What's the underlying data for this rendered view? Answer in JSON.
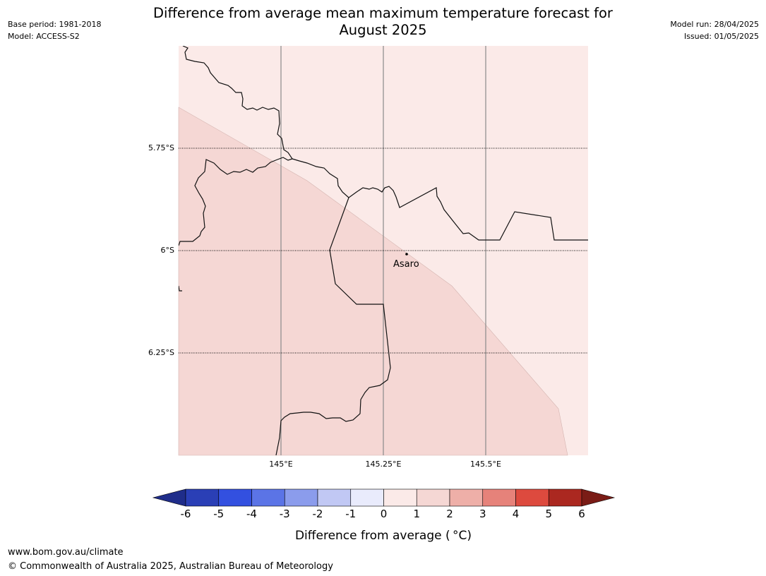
{
  "header": {
    "title_line1": "Difference from average mean maximum temperature forecast for",
    "title_line2": "August 2025",
    "base_period": "Base period: 1981-2018",
    "model": "Model: ACCESS-S2",
    "model_run": "Model run: 28/04/2025",
    "issued": "Issued: 01/05/2025"
  },
  "map": {
    "lat_labels": [
      "5.75°S",
      "6°S",
      "6.25°S"
    ],
    "lon_labels": [
      "145°E",
      "145.25°E",
      "145.5°E"
    ],
    "place_name": "Asaro",
    "region_colors": {
      "band_0_to_1": "#fbeae8",
      "band_1_to_2": "#f5d7d4"
    }
  },
  "colorbar": {
    "label": "Difference from average ( °C)",
    "ticks": [
      "-6",
      "-5",
      "-4",
      "-3",
      "-2",
      "-1",
      "0",
      "1",
      "2",
      "3",
      "4",
      "5",
      "6"
    ],
    "colors": [
      "#1f2d8a",
      "#2a3fb6",
      "#3350e0",
      "#5b74e6",
      "#8b9cec",
      "#c1c8f4",
      "#e9ebfc",
      "#fbeae8",
      "#f5d7d4",
      "#eeafa8",
      "#e6827a",
      "#dd4a3e",
      "#ab2820",
      "#7a1c16"
    ]
  },
  "footer": {
    "url": "www.bom.gov.au/climate",
    "copyright": "© Commonwealth of Australia 2025, Australian Bureau of Meteorology"
  }
}
